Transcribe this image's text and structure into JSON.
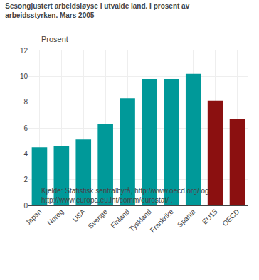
{
  "chart_data": {
    "type": "bar",
    "title": "Sesongjustert arbeidsløyse i utvalde land. I prosent av\narbeidsstyrken. Mars 2005",
    "ylabel": "Prosent",
    "categories": [
      "Japan",
      "Noreg",
      "USA",
      "Sverige",
      "Finland",
      "Tyskland",
      "Frankrike",
      "Spania",
      "EU15",
      "OECD"
    ],
    "values": [
      4.5,
      4.6,
      5.1,
      6.3,
      8.3,
      9.8,
      9.8,
      10.2,
      8.1,
      6.7
    ],
    "colors": [
      "#009999",
      "#009999",
      "#009999",
      "#009999",
      "#009999",
      "#009999",
      "#009999",
      "#009999",
      "#8B1010",
      "#8B1010"
    ],
    "ylim": [
      0,
      12
    ],
    "yticks": [
      0,
      2,
      4,
      6,
      8,
      10,
      12
    ],
    "grid": true,
    "annotations": [
      "Kjelde: Statistisk sentralbyrå, http://www.oecd.org/ og\nhttp://www.europa.eu.int/comm/eurostat/ ."
    ]
  }
}
